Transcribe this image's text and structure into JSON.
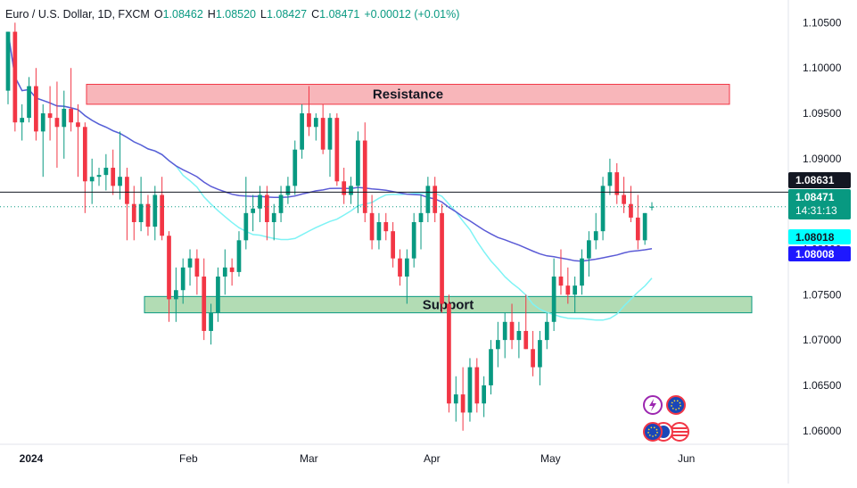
{
  "header": {
    "symbol": "Euro / U.S. Dollar, 1D, FXCM",
    "open_label": "O",
    "open": "1.08462",
    "high_label": "H",
    "high": "1.08520",
    "low_label": "L",
    "low": "1.08427",
    "close_label": "C",
    "close": "1.08471",
    "change": "+0.00012 (+0.01%)"
  },
  "price_tags": {
    "last_close": "1.08631",
    "current": "1.08471",
    "countdown": "14:31:13",
    "ma_fast": "1.08018",
    "ma_slow": "1.08008"
  },
  "zones": {
    "resistance_label": "Resistance",
    "support_label": "Support"
  },
  "colors": {
    "up": "#089981",
    "down": "#f23645",
    "ma_fast": "#7ef3f5",
    "ma_slow": "#5b5bd6",
    "resistance_fill": "#f7a9ae",
    "support_fill": "#a5d6a7"
  },
  "icons": [
    "lightning-icon",
    "eu-flag-icon",
    "eu-flag-icon",
    "us-flag-icon"
  ],
  "chart_data": {
    "type": "candlestick",
    "title": "Euro / U.S. Dollar, 1D, FXCM",
    "y_ticks": [
      "1.10500",
      "1.10000",
      "1.09500",
      "1.09000",
      "1.08500",
      "1.08000",
      "1.07500",
      "1.07000",
      "1.06500",
      "1.06000"
    ],
    "x_ticks": [
      "2024",
      "Feb",
      "Mar",
      "Apr",
      "May",
      "Jun"
    ],
    "ylim": [
      1.0585,
      1.1075
    ],
    "zones": [
      {
        "name": "Resistance",
        "from": 1.096,
        "to": 1.0982
      },
      {
        "name": "Support",
        "from": 1.073,
        "to": 1.0748
      }
    ],
    "horizontal_line": 1.08631,
    "candles": [
      [
        1.0975,
        1.104,
        1.096,
        1.104
      ],
      [
        1.104,
        1.105,
        1.093,
        1.094
      ],
      [
        1.094,
        1.096,
        1.092,
        1.0945
      ],
      [
        1.0945,
        1.099,
        1.094,
        1.098
      ],
      [
        1.098,
        1.1,
        1.092,
        1.093
      ],
      [
        1.093,
        1.096,
        1.088,
        1.095
      ],
      [
        1.095,
        1.098,
        1.092,
        1.0945
      ],
      [
        1.0945,
        1.0985,
        1.089,
        1.0935
      ],
      [
        1.0935,
        1.0975,
        1.09,
        1.0955
      ],
      [
        1.0955,
        1.1,
        1.093,
        1.094
      ],
      [
        1.094,
        1.096,
        1.088,
        1.0935
      ],
      [
        1.0935,
        1.094,
        1.084,
        1.0875
      ],
      [
        1.0875,
        1.09,
        1.085,
        1.088
      ],
      [
        1.088,
        1.089,
        1.087,
        1.0882
      ],
      [
        1.0882,
        1.0905,
        1.0865,
        1.089
      ],
      [
        1.089,
        1.091,
        1.086,
        1.087
      ],
      [
        1.087,
        1.093,
        1.0855,
        1.088
      ],
      [
        1.088,
        1.089,
        1.081,
        1.085
      ],
      [
        1.085,
        1.087,
        1.081,
        1.083
      ],
      [
        1.083,
        1.088,
        1.082,
        1.085
      ],
      [
        1.085,
        1.086,
        1.0815,
        1.0825
      ],
      [
        1.0825,
        1.087,
        1.081,
        1.086
      ],
      [
        1.086,
        1.088,
        1.081,
        1.0815
      ],
      [
        1.0815,
        1.082,
        1.072,
        1.0745
      ],
      [
        1.0745,
        1.078,
        1.072,
        1.0755
      ],
      [
        1.0755,
        1.079,
        1.074,
        1.078
      ],
      [
        1.078,
        1.08,
        1.076,
        1.079
      ],
      [
        1.079,
        1.08,
        1.075,
        1.077
      ],
      [
        1.077,
        1.079,
        1.07,
        1.071
      ],
      [
        1.071,
        1.074,
        1.0695,
        1.073
      ],
      [
        1.073,
        1.078,
        1.072,
        1.077
      ],
      [
        1.077,
        1.08,
        1.075,
        1.078
      ],
      [
        1.078,
        1.079,
        1.076,
        1.0775
      ],
      [
        1.0775,
        1.082,
        1.077,
        1.081
      ],
      [
        1.081,
        1.088,
        1.08,
        1.084
      ],
      [
        1.084,
        1.086,
        1.082,
        1.0845
      ],
      [
        1.0845,
        1.087,
        1.083,
        1.086
      ],
      [
        1.086,
        1.087,
        1.081,
        1.083
      ],
      [
        1.083,
        1.085,
        1.081,
        1.084
      ],
      [
        1.084,
        1.087,
        1.083,
        1.086
      ],
      [
        1.086,
        1.088,
        1.085,
        1.087
      ],
      [
        1.087,
        1.092,
        1.086,
        1.091
      ],
      [
        1.091,
        1.096,
        1.09,
        1.095
      ],
      [
        1.095,
        1.098,
        1.0925,
        1.0935
      ],
      [
        1.0935,
        1.095,
        1.092,
        1.0945
      ],
      [
        1.0945,
        1.096,
        1.0905,
        1.091
      ],
      [
        1.091,
        1.095,
        1.088,
        1.0945
      ],
      [
        1.0945,
        1.095,
        1.087,
        1.0875
      ],
      [
        1.0875,
        1.089,
        1.085,
        1.086
      ],
      [
        1.086,
        1.088,
        1.085,
        1.087
      ],
      [
        1.087,
        1.093,
        1.084,
        1.092
      ],
      [
        1.092,
        1.094,
        1.083,
        1.084
      ],
      [
        1.084,
        1.086,
        1.08,
        1.081
      ],
      [
        1.081,
        1.084,
        1.08,
        1.083
      ],
      [
        1.083,
        1.084,
        1.081,
        1.082
      ],
      [
        1.082,
        1.083,
        1.078,
        1.079
      ],
      [
        1.079,
        1.08,
        1.076,
        1.077
      ],
      [
        1.077,
        1.08,
        1.074,
        1.079
      ],
      [
        1.079,
        1.084,
        1.078,
        1.083
      ],
      [
        1.083,
        1.086,
        1.08,
        1.084
      ],
      [
        1.084,
        1.088,
        1.083,
        1.087
      ],
      [
        1.087,
        1.088,
        1.083,
        1.084
      ],
      [
        1.084,
        1.085,
        1.073,
        1.074
      ],
      [
        1.074,
        1.075,
        1.062,
        1.063
      ],
      [
        1.063,
        1.066,
        1.061,
        1.064
      ],
      [
        1.064,
        1.067,
        1.06,
        1.062
      ],
      [
        1.062,
        1.068,
        1.061,
        1.067
      ],
      [
        1.067,
        1.068,
        1.062,
        1.063
      ],
      [
        1.063,
        1.066,
        1.0615,
        1.065
      ],
      [
        1.065,
        1.07,
        1.064,
        1.069
      ],
      [
        1.069,
        1.072,
        1.067,
        1.07
      ],
      [
        1.07,
        1.073,
        1.068,
        1.072
      ],
      [
        1.072,
        1.074,
        1.069,
        1.07
      ],
      [
        1.07,
        1.072,
        1.068,
        1.071
      ],
      [
        1.071,
        1.075,
        1.069,
        1.069
      ],
      [
        1.069,
        1.071,
        1.066,
        1.067
      ],
      [
        1.067,
        1.071,
        1.065,
        1.07
      ],
      [
        1.07,
        1.073,
        1.069,
        1.072
      ],
      [
        1.072,
        1.079,
        1.071,
        1.077
      ],
      [
        1.077,
        1.08,
        1.075,
        1.076
      ],
      [
        1.076,
        1.078,
        1.074,
        1.075
      ],
      [
        1.075,
        1.077,
        1.073,
        1.076
      ],
      [
        1.076,
        1.08,
        1.075,
        1.079
      ],
      [
        1.079,
        1.082,
        1.077,
        1.081
      ],
      [
        1.081,
        1.084,
        1.08,
        1.082
      ],
      [
        1.082,
        1.088,
        1.081,
        1.087
      ],
      [
        1.087,
        1.09,
        1.086,
        1.0885
      ],
      [
        1.0885,
        1.0895,
        1.085,
        1.086
      ],
      [
        1.086,
        1.088,
        1.084,
        1.085
      ],
      [
        1.085,
        1.087,
        1.083,
        1.0835
      ],
      [
        1.0835,
        1.086,
        1.08,
        1.081
      ],
      [
        1.081,
        1.084,
        1.0805,
        1.084
      ],
      [
        1.0846,
        1.0852,
        1.0843,
        1.0847
      ]
    ]
  }
}
